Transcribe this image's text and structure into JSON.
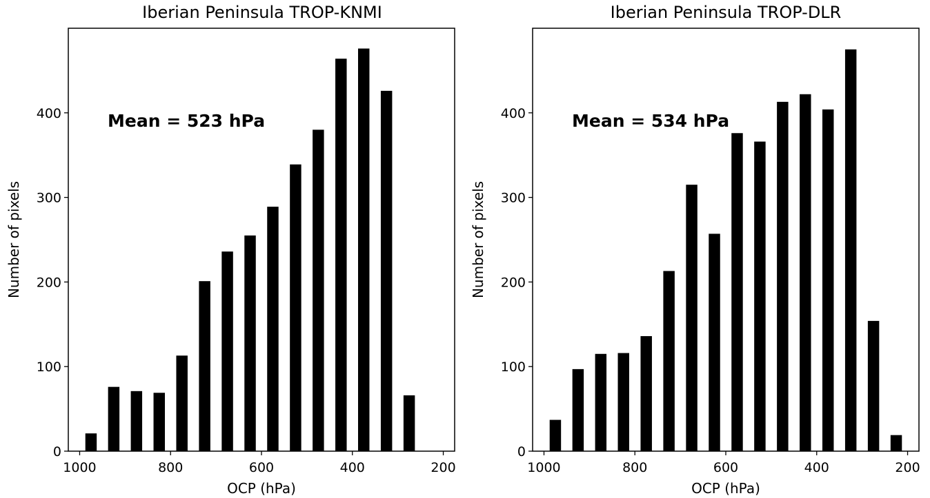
{
  "chart_data": [
    {
      "type": "bar",
      "title": "Iberian Peninsula TROP-KNMI",
      "xlabel": "OCP (hPa)",
      "ylabel": "Number of pixels",
      "annotation": "Mean = 523 hPa",
      "x_axis_reversed": true,
      "xlim": [
        1025,
        175
      ],
      "ylim": [
        0,
        500
      ],
      "xticks": [
        1000,
        800,
        600,
        400,
        200
      ],
      "yticks": [
        0,
        100,
        200,
        300,
        400
      ],
      "bar_width_hpa": 25,
      "x": [
        975,
        925,
        875,
        825,
        775,
        725,
        675,
        625,
        575,
        525,
        475,
        425,
        375,
        325,
        275
      ],
      "values": [
        21,
        76,
        71,
        69,
        113,
        201,
        236,
        255,
        289,
        339,
        380,
        464,
        476,
        426,
        66
      ]
    },
    {
      "type": "bar",
      "title": "Iberian Peninsula TROP-DLR",
      "xlabel": "OCP (hPa)",
      "ylabel": "Number of pixels",
      "annotation": "Mean = 534 hPa",
      "x_axis_reversed": true,
      "xlim": [
        1025,
        175
      ],
      "ylim": [
        0,
        500
      ],
      "xticks": [
        1000,
        800,
        600,
        400,
        200
      ],
      "yticks": [
        0,
        100,
        200,
        300,
        400
      ],
      "bar_width_hpa": 25,
      "x": [
        975,
        925,
        875,
        825,
        775,
        725,
        675,
        625,
        575,
        525,
        475,
        425,
        375,
        325,
        275,
        225
      ],
      "values": [
        37,
        97,
        115,
        116,
        136,
        213,
        315,
        257,
        376,
        366,
        413,
        422,
        404,
        475,
        154,
        19
      ]
    }
  ]
}
